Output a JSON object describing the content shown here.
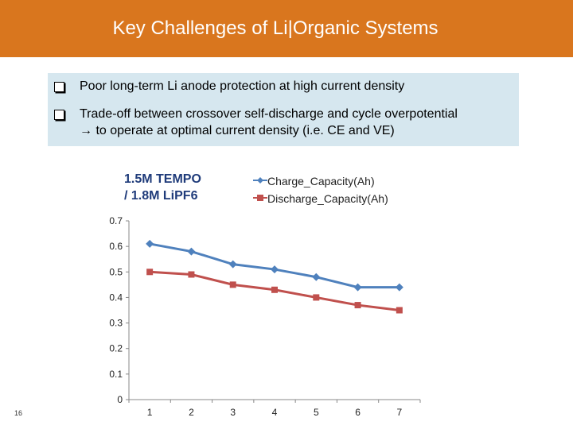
{
  "header": {
    "title": "Key Challenges of Li|Organic Systems"
  },
  "bullets": [
    {
      "text": "Poor long-term Li anode protection at high current density"
    },
    {
      "text": "Trade-off between crossover self-discharge and cycle overpotential"
    },
    {
      "text": "→ to operate at optimal current density (i.e. CE and VE)"
    }
  ],
  "chart_label": {
    "line1": "1.5M TEMPO",
    "line2": "/ 1.8M LiPF6"
  },
  "page_number": "16",
  "colors": {
    "header": "#d9761e",
    "bullet_box": "#d6e7ef",
    "charge": "#4f81bd",
    "discharge": "#c0504d"
  },
  "chart_data": {
    "type": "line",
    "x": [
      1,
      2,
      3,
      4,
      5,
      6,
      7
    ],
    "series": [
      {
        "name": "Charge_Capacity(Ah)",
        "color": "#4f81bd",
        "marker": "diamond",
        "values": [
          0.61,
          0.58,
          0.53,
          0.51,
          0.48,
          0.44,
          0.44
        ]
      },
      {
        "name": "Discharge_Capacity(Ah)",
        "color": "#c0504d",
        "marker": "square",
        "values": [
          0.5,
          0.49,
          0.45,
          0.43,
          0.4,
          0.37,
          0.35
        ]
      }
    ],
    "ylim": [
      0,
      0.7
    ],
    "yticks": [
      "0",
      "0.1",
      "0.2",
      "0.3",
      "0.4",
      "0.5",
      "0.6",
      "0.7"
    ],
    "xticks": [
      "1",
      "2",
      "3",
      "4",
      "5",
      "6",
      "7"
    ],
    "grid": false,
    "legend_position": "top-right",
    "title": "",
    "xlabel": "",
    "ylabel": ""
  }
}
